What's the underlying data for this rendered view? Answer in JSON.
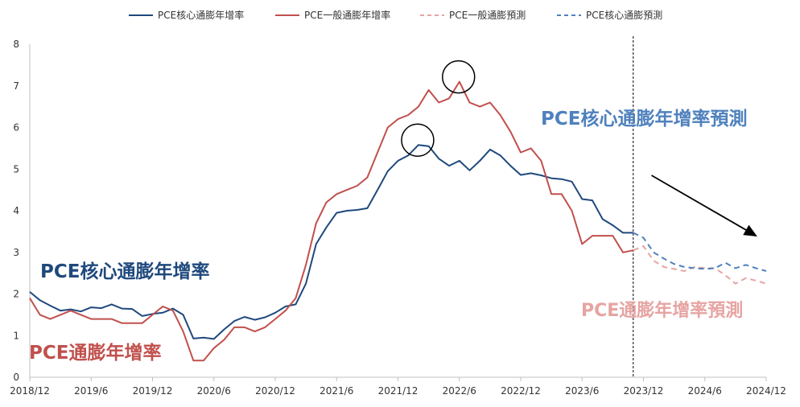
{
  "chart_data": {
    "type": "line",
    "xlim": [
      "2018/12",
      "2024/12"
    ],
    "ylim": [
      0,
      8
    ],
    "y_ticks": [
      0,
      1,
      2,
      3,
      4,
      5,
      6,
      7,
      8
    ],
    "x_ticks": [
      "2018/12",
      "2019/6",
      "2019/12",
      "2020/6",
      "2020/12",
      "2021/6",
      "2021/12",
      "2022/6",
      "2022/12",
      "2023/6",
      "2023/12",
      "2024/6",
      "2024/12"
    ],
    "grid": false,
    "legend_position": "top",
    "forecast_start": "2023/11",
    "series": [
      {
        "name": "PCE核心通膨年增率",
        "color": "#1f497d",
        "dashed": false,
        "x": [
          "2018/12",
          "2019/1",
          "2019/2",
          "2019/3",
          "2019/4",
          "2019/5",
          "2019/6",
          "2019/7",
          "2019/8",
          "2019/9",
          "2019/10",
          "2019/11",
          "2019/12",
          "2020/1",
          "2020/2",
          "2020/3",
          "2020/4",
          "2020/5",
          "2020/6",
          "2020/7",
          "2020/8",
          "2020/9",
          "2020/10",
          "2020/11",
          "2020/12",
          "2021/1",
          "2021/2",
          "2021/3",
          "2021/4",
          "2021/5",
          "2021/6",
          "2021/7",
          "2021/8",
          "2021/9",
          "2021/10",
          "2021/11",
          "2021/12",
          "2022/1",
          "2022/2",
          "2022/3",
          "2022/4",
          "2022/5",
          "2022/6",
          "2022/7",
          "2022/8",
          "2022/9",
          "2022/10",
          "2022/11",
          "2022/12",
          "2023/1",
          "2023/2",
          "2023/3",
          "2023/4",
          "2023/5",
          "2023/6",
          "2023/7",
          "2023/8",
          "2023/9",
          "2023/10",
          "2023/11"
        ],
        "values": [
          2.05,
          1.85,
          1.72,
          1.6,
          1.63,
          1.58,
          1.68,
          1.66,
          1.75,
          1.65,
          1.64,
          1.47,
          1.52,
          1.55,
          1.65,
          1.5,
          0.93,
          0.95,
          0.92,
          1.15,
          1.35,
          1.45,
          1.38,
          1.44,
          1.55,
          1.7,
          1.75,
          2.25,
          3.2,
          3.6,
          3.95,
          4.0,
          4.02,
          4.06,
          4.5,
          4.95,
          5.2,
          5.33,
          5.58,
          5.55,
          5.25,
          5.08,
          5.2,
          4.97,
          5.2,
          5.47,
          5.33,
          5.08,
          4.86,
          4.9,
          4.85,
          4.78,
          4.76,
          4.7,
          4.28,
          4.25,
          3.8,
          3.65,
          3.47,
          3.47
        ]
      },
      {
        "name": "PCE一般通膨年增率",
        "color": "#c0504d",
        "dashed": false,
        "x": [
          "2018/12",
          "2019/1",
          "2019/2",
          "2019/3",
          "2019/4",
          "2019/5",
          "2019/6",
          "2019/7",
          "2019/8",
          "2019/9",
          "2019/10",
          "2019/11",
          "2019/12",
          "2020/1",
          "2020/2",
          "2020/3",
          "2020/4",
          "2020/5",
          "2020/6",
          "2020/7",
          "2020/8",
          "2020/9",
          "2020/10",
          "2020/11",
          "2020/12",
          "2021/1",
          "2021/2",
          "2021/3",
          "2021/4",
          "2021/5",
          "2021/6",
          "2021/7",
          "2021/8",
          "2021/9",
          "2021/10",
          "2021/11",
          "2021/12",
          "2022/1",
          "2022/2",
          "2022/3",
          "2022/4",
          "2022/5",
          "2022/6",
          "2022/7",
          "2022/8",
          "2022/9",
          "2022/10",
          "2022/11",
          "2022/12",
          "2023/1",
          "2023/2",
          "2023/3",
          "2023/4",
          "2023/5",
          "2023/6",
          "2023/7",
          "2023/8",
          "2023/9",
          "2023/10",
          "2023/11"
        ],
        "values": [
          1.9,
          1.5,
          1.4,
          1.5,
          1.6,
          1.5,
          1.4,
          1.4,
          1.4,
          1.3,
          1.3,
          1.3,
          1.5,
          1.7,
          1.6,
          1.1,
          0.4,
          0.4,
          0.7,
          0.9,
          1.2,
          1.2,
          1.1,
          1.2,
          1.4,
          1.6,
          1.9,
          2.7,
          3.7,
          4.2,
          4.4,
          4.5,
          4.6,
          4.8,
          5.4,
          6.0,
          6.2,
          6.3,
          6.5,
          6.9,
          6.6,
          6.7,
          7.1,
          6.6,
          6.5,
          6.6,
          6.3,
          5.9,
          5.4,
          5.5,
          5.2,
          4.4,
          4.4,
          4.0,
          3.2,
          3.4,
          3.4,
          3.4,
          3.0,
          3.05
        ]
      },
      {
        "name": "PCE一般通膨預測",
        "color": "#e6a4a2",
        "dashed": true,
        "x": [
          "2023/11",
          "2023/12",
          "2024/1",
          "2024/2",
          "2024/3",
          "2024/4",
          "2024/5",
          "2024/6",
          "2024/7",
          "2024/8",
          "2024/9",
          "2024/10",
          "2024/11",
          "2024/12"
        ],
        "values": [
          3.05,
          3.15,
          2.8,
          2.65,
          2.6,
          2.55,
          2.65,
          2.62,
          2.62,
          2.45,
          2.25,
          2.38,
          2.32,
          2.25
        ]
      },
      {
        "name": "PCE核心通膨預測",
        "color": "#4f81bd",
        "dashed": true,
        "x": [
          "2023/11",
          "2023/12",
          "2024/1",
          "2024/2",
          "2024/3",
          "2024/4",
          "2024/5",
          "2024/6",
          "2024/7",
          "2024/8",
          "2024/9",
          "2024/10",
          "2024/11",
          "2024/12"
        ],
        "values": [
          3.47,
          3.35,
          3.0,
          2.85,
          2.72,
          2.65,
          2.62,
          2.6,
          2.62,
          2.75,
          2.62,
          2.7,
          2.62,
          2.55
        ]
      }
    ],
    "annotations": {
      "core_label": "PCE核心通膨年增率",
      "headline_label": "PCE通膨年增率",
      "core_forecast_label": "PCE核心通膨年增率預測",
      "headline_forecast_label": "PCE通膨年增率預測",
      "circled_peaks": [
        {
          "series": "PCE一般通膨年增率",
          "x": "2022/6",
          "y": 7.1
        },
        {
          "series": "PCE核心通膨年增率",
          "x": "2022/2",
          "y": 5.58
        }
      ],
      "trend_arrow": {
        "from": [
          "2023/12",
          4.85
        ],
        "to": [
          "2024/11",
          3.4
        ]
      }
    }
  }
}
